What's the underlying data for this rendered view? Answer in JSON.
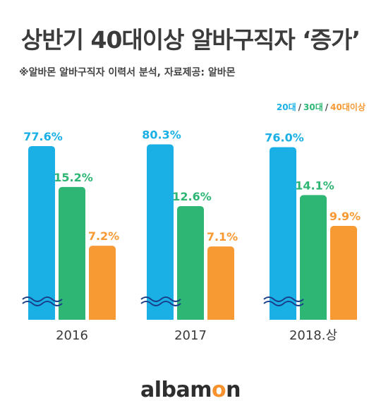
{
  "header": {
    "title": "상반기 40대이상 알바구직자 ‘증가’",
    "subtitle": "※알바몬 알바구직자 이력서 분석, 자료제공: 알바몬"
  },
  "colors": {
    "blue": "#1ab0e6",
    "green": "#2eb674",
    "orange": "#f89a34",
    "text": "#3a3a3a"
  },
  "chart_data": {
    "type": "bar",
    "categories": [
      "2016",
      "2017",
      "2018.상"
    ],
    "series": [
      {
        "name": "20대",
        "values": [
          77.6,
          80.3,
          76.0
        ],
        "labels": [
          "77.6%",
          "80.3%",
          "76.0%"
        ]
      },
      {
        "name": "30대",
        "values": [
          15.2,
          12.6,
          14.1
        ],
        "labels": [
          "15.2%",
          "12.6%",
          "14.1%"
        ]
      },
      {
        "name": "40대이상",
        "values": [
          7.2,
          7.1,
          9.9
        ],
        "labels": [
          "7.2%",
          "7.1%",
          "9.9%"
        ]
      }
    ],
    "axis_break": true,
    "title": "상반기 40대이상 알바구직자 ‘증가’",
    "legend_position": "top-right"
  },
  "footer": {
    "logo_main": "albam",
    "logo_accent": "o",
    "logo_end": "n"
  }
}
